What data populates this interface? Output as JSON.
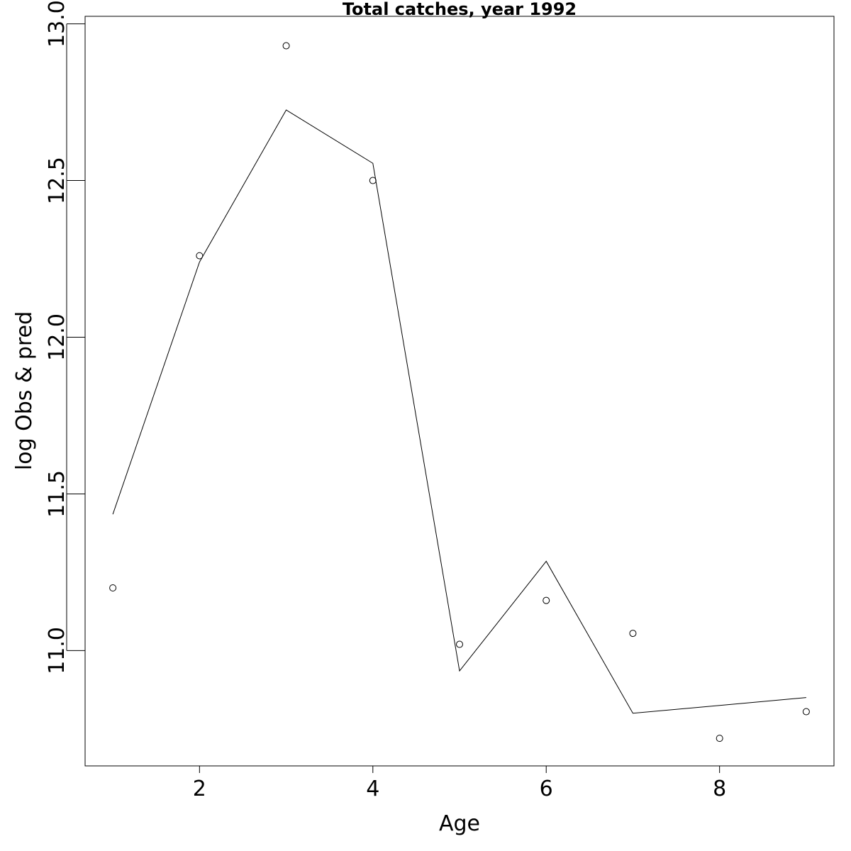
{
  "chart_data": {
    "type": "line",
    "title": "Total catches, year 1992",
    "xlabel": "Age",
    "ylabel": "log Obs & pred",
    "xlim": [
      0.68,
      9.32
    ],
    "ylim": [
      10.632,
      13.024
    ],
    "xticks": [
      2,
      4,
      6,
      8
    ],
    "yticks": [
      11.0,
      11.5,
      12.0,
      12.5,
      13.0
    ],
    "ytick_labels": [
      "11.0",
      "11.5",
      "12.0",
      "12.5",
      "13.0"
    ],
    "x": [
      1,
      2,
      3,
      4,
      5,
      6,
      7,
      8,
      9
    ],
    "series": [
      {
        "kind": "points",
        "values": [
          11.2,
          12.26,
          12.93,
          12.5,
          11.02,
          11.16,
          11.055,
          10.72,
          10.805
        ]
      },
      {
        "kind": "line",
        "values": [
          11.435,
          12.24,
          12.725,
          12.555,
          10.935,
          11.285,
          10.8,
          10.825,
          10.85
        ]
      }
    ],
    "grid": false,
    "legend": "none"
  }
}
